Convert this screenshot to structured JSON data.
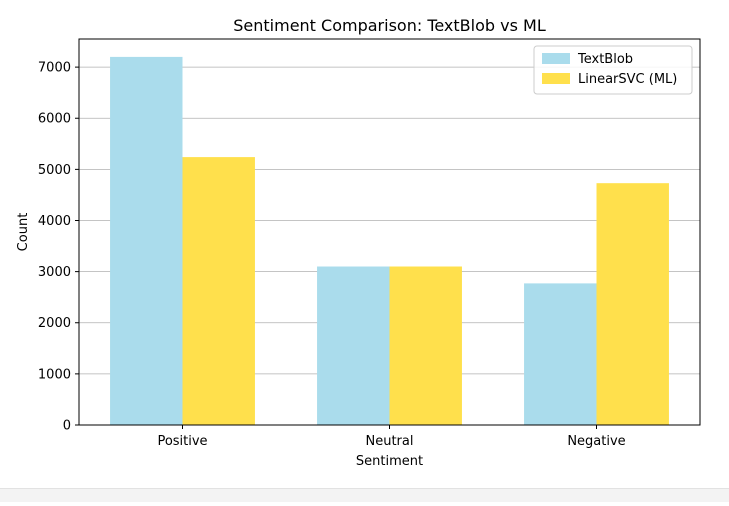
{
  "chart_data": {
    "type": "bar",
    "title": "Sentiment Comparison: TextBlob vs ML",
    "xlabel": "Sentiment",
    "ylabel": "Count",
    "categories": [
      "Positive",
      "Neutral",
      "Negative"
    ],
    "series": [
      {
        "name": "TextBlob",
        "values": [
          7200,
          3100,
          2770
        ],
        "color": "#aadcec"
      },
      {
        "name": "LinearSVC (ML)",
        "values": [
          5240,
          3100,
          4730
        ],
        "color": "#ffe04c"
      }
    ],
    "ylim": [
      0,
      7550
    ],
    "yticks": [
      0,
      1000,
      2000,
      3000,
      4000,
      5000,
      6000,
      7000
    ],
    "ytick_labels": [
      "0",
      "1000",
      "2000",
      "3000",
      "4000",
      "5000",
      "6000",
      "7000"
    ],
    "grid": true,
    "grid_axis": "y",
    "legend_position": "top-right"
  }
}
